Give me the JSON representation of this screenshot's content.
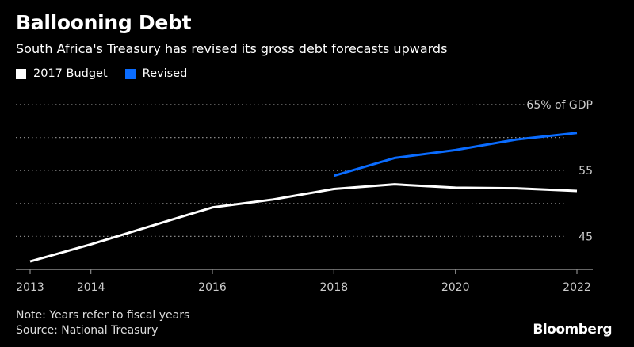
{
  "chart_data": {
    "type": "line",
    "title": "Ballooning Debt",
    "subtitle": "South Africa's Treasury has revised its gross debt forecasts upwards",
    "x": [
      2013,
      2014,
      2015,
      2016,
      2017,
      2018,
      2019,
      2020,
      2021,
      2022
    ],
    "xticks": [
      "2013",
      "2014",
      "2016",
      "2018",
      "2020",
      "2022"
    ],
    "yticks": [
      {
        "value": 65,
        "label": "65% of GDP"
      },
      {
        "value": 55,
        "label": "55"
      },
      {
        "value": 45,
        "label": "45"
      }
    ],
    "ylim": [
      40,
      65
    ],
    "grid": true,
    "legend_placement": "top-left",
    "series": [
      {
        "name": "2017 Budget",
        "color": "#ffffff",
        "x": [
          2013,
          2014,
          2015,
          2016,
          2017,
          2018,
          2019,
          2020,
          2021,
          2022
        ],
        "values": [
          41.2,
          43.8,
          46.6,
          49.4,
          50.6,
          52.2,
          52.9,
          52.4,
          52.3,
          51.9
        ]
      },
      {
        "name": "Revised",
        "color": "#0a6cff",
        "x": [
          2018,
          2019,
          2020,
          2021,
          2022
        ],
        "values": [
          54.2,
          56.9,
          58.1,
          59.7,
          60.7
        ]
      }
    ]
  },
  "footer": {
    "note": "Note: Years refer to fiscal years",
    "source": "Source: National Treasury",
    "brand": "Bloomberg"
  }
}
